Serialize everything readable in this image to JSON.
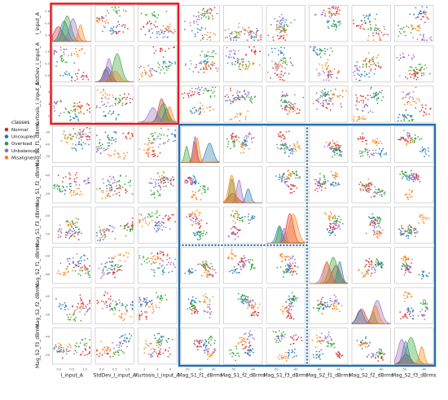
{
  "chart_data": {
    "type": "scatter",
    "variables": [
      "I_input_A",
      "StdDev_I_input_A",
      "Kurtosis_I_input_A",
      "Mag_S1_f1_dBrms",
      "Mag_S1_f2_dBrms",
      "Mag_S1_f3_dBrms",
      "Mag_S2_f1_dBrms",
      "Mag_S2_f2_dBrms",
      "Mag_S2_f3_dBrms"
    ],
    "diagonal": "kde",
    "legend": {
      "title": "classes",
      "placement": "left",
      "entries": [
        {
          "name": "Normal",
          "color": "#d62728"
        },
        {
          "name": "Uncoupled",
          "color": "#1f77b4"
        },
        {
          "name": "Overload",
          "color": "#2ca02c"
        },
        {
          "name": "Unbalanced",
          "color": "#9467bd"
        },
        {
          "name": "Misaligned",
          "color": "#ff7f0e"
        }
      ]
    },
    "tick_labels": {
      "x": {
        "I_input_A": [
          "0.0",
          "0.5",
          "1.0"
        ],
        "StdDev_I_input_A": [
          "0.0",
          "0.5",
          "1.0"
        ],
        "Kurtosis_I_input_A": [
          "2",
          "3",
          "4"
        ],
        "Mag_S1_f1_dBrms": [
          "-50",
          "-40",
          "-30"
        ],
        "Mag_S1_f2_dBrms": [
          "-50",
          "-40"
        ],
        "Mag_S1_f3_dBrms": [
          "-50",
          "-40"
        ],
        "Mag_S2_f1_dBrms": [
          "-60",
          "-40"
        ],
        "Mag_S2_f2_dBrms": [
          "-50",
          "-40"
        ],
        "Mag_S2_f3_dBrms": [
          "-50",
          "-40"
        ]
      },
      "y": {
        "I_input_A": [
          "0.6",
          "0.5",
          "0.4"
        ],
        "StdDev_I_input_A": [
          "1.0",
          "0.5",
          "0.0"
        ],
        "Kurtosis_I_input_A": [
          "4",
          "3",
          "2"
        ],
        "Mag_S1_f1_dBrms": [
          "-30",
          "-40",
          "-50"
        ],
        "Mag_S1_f2_dBrms": [
          "-40",
          "-50"
        ],
        "Mag_S1_f3_dBrms": [
          "-40",
          "-50"
        ],
        "Mag_S2_f1_dBrms": [
          "-40",
          "-60"
        ],
        "Mag_S2_f2_dBrms": [
          "-40",
          "-50"
        ],
        "Mag_S2_f3_dBrms": [
          "-40",
          "-50"
        ]
      }
    },
    "highlight_colors": {
      "red_box": "#e8141b",
      "blue_box": "#1f6db5"
    }
  }
}
